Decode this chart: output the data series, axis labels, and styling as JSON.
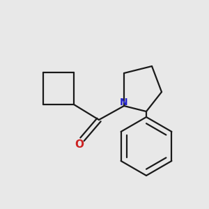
{
  "background_color": "#e8e8e8",
  "bond_color": "#1a1a1a",
  "nitrogen_color": "#2222cc",
  "oxygen_color": "#cc2222",
  "line_width": 1.6,
  "figsize": [
    3.0,
    3.0
  ],
  "dpi": 100
}
